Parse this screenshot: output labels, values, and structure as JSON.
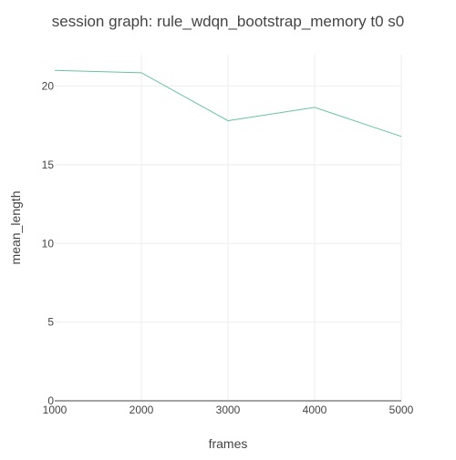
{
  "chart_data": {
    "type": "line",
    "title": "session graph: rule_wdqn_bootstrap_memory t0 s0",
    "xlabel": "frames",
    "ylabel": "mean_length",
    "x": [
      1000,
      2000,
      3000,
      4000,
      5000
    ],
    "series": [
      {
        "values": [
          21.0,
          20.85,
          17.8,
          18.65,
          16.8
        ],
        "color": "#66c2a5"
      }
    ],
    "xlim": [
      1000,
      5000
    ],
    "ylim": [
      0,
      22
    ],
    "xticks": [
      1000,
      2000,
      3000,
      4000,
      5000
    ],
    "yticks": [
      0,
      5,
      10,
      15,
      20
    ],
    "grid": true,
    "legend": "none"
  }
}
